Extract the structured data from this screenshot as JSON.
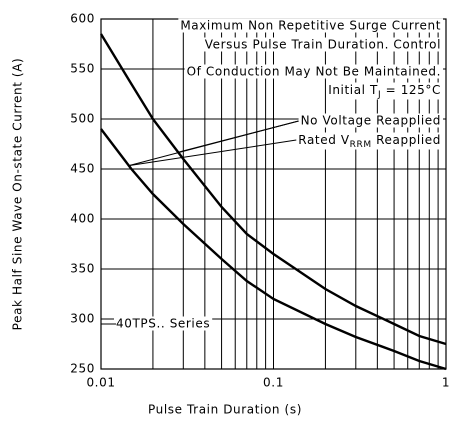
{
  "chart_data": {
    "type": "line",
    "log_x": true,
    "minor_grid": true,
    "grid": true,
    "xlabel": "Pulse Train Duration (s)",
    "ylabel": "Peak Half Sine Wave On-state Current (A)",
    "xlim": [
      0.01,
      1
    ],
    "ylim": [
      250,
      600
    ],
    "xticks": [
      0.01,
      0.1,
      1
    ],
    "yticks": [
      250,
      300,
      350,
      400,
      450,
      500,
      550,
      600
    ],
    "x": [
      0.01,
      0.015,
      0.02,
      0.03,
      0.05,
      0.07,
      0.1,
      0.2,
      0.3,
      0.5,
      0.7,
      1
    ],
    "series": [
      {
        "name": "No Voltage Reapplied",
        "color": "#000000",
        "values": [
          585,
          535,
          500,
          460,
          412,
          385,
          365,
          330,
          313,
          295,
          283,
          275
        ]
      },
      {
        "name_parts": [
          "Rated V",
          "RRM",
          " Reapplied"
        ],
        "color": "#000000",
        "values": [
          490,
          450,
          425,
          395,
          360,
          338,
          320,
          295,
          282,
          268,
          258,
          250
        ]
      }
    ],
    "annotations": [
      "Maximum Non Repetitive Surge Current",
      "Versus Pulse Train Duration. Control",
      "Of Conduction May Not Be Maintained."
    ],
    "condition_parts": [
      "Initial T",
      "J",
      " = 125°C"
    ],
    "series_label": "40TPS.. Series"
  }
}
